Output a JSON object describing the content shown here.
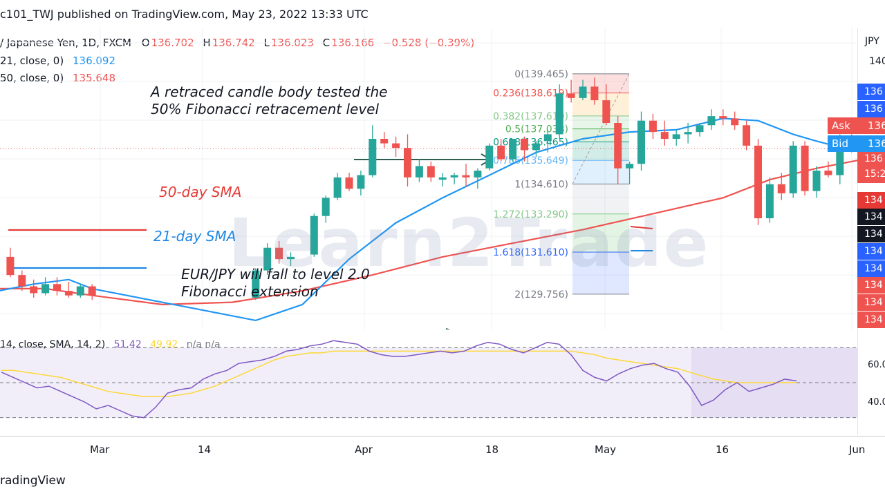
{
  "header": {
    "published": "c101_TWJ published on TradingView.com, May 23, 2022 13:33 UTC"
  },
  "legend": {
    "symbol": "/ Japanese Yen, 1D, FXCM",
    "o_label": "O",
    "o_value": "136.702",
    "h_label": "H",
    "h_value": "136.742",
    "l_label": "L",
    "l_value": "136.023",
    "c_label": "C",
    "c_value": "136.166",
    "change": "−0.528 (−0.39%)",
    "sma21_label": "21, close, 0)",
    "sma21_value": "136.092",
    "sma50_label": "50, close, 0)",
    "sma50_value": "135.648"
  },
  "annotations": {
    "retrace_line1": "A retraced candle body tested the",
    "retrace_line2": "50% Fibonacci retracement level",
    "sma50_label": "50-day SMA",
    "sma21_label": "21-day SMA",
    "forecast_line1": "EUR/JPY will fall to level 2.0",
    "forecast_line2": "Fibonacci extension",
    "watermark": "Learn2Trade"
  },
  "fibonacci": [
    {
      "level": "0",
      "price": "139.465",
      "text": "0(139.465)",
      "color": "#787b86"
    },
    {
      "level": "0.236",
      "price": "138.619",
      "text": "0.236(138.619)",
      "color": "#ef5350"
    },
    {
      "level": "0.382",
      "price": "137.610",
      "text": "0.382(137.610)",
      "color": "#81c784"
    },
    {
      "level": "0.5",
      "price": "137.038",
      "text": "0.5(137.038)",
      "color": "#4caf50"
    },
    {
      "level": "0.618",
      "price": "136.465",
      "text": "0.618(136.465)",
      "color": "#089981"
    },
    {
      "level": "0.786",
      "price": "135.649",
      "text": "0.786(135.649)",
      "color": "#64b5f6"
    },
    {
      "level": "1",
      "price": "134.610",
      "text": "1(134.610)",
      "color": "#787b86"
    },
    {
      "level": "1.272",
      "price": "133.290",
      "text": "1.272(133.290)",
      "color": "#81c784"
    },
    {
      "level": "1.618",
      "price": "131.610",
      "text": "1.618(131.610)",
      "color": "#2962ff"
    },
    {
      "level": "2",
      "price": "129.756",
      "text": "2(129.756)",
      "color": "#787b86"
    }
  ],
  "rsi": {
    "label": "14, close, SMA, 14, 2)",
    "rsi_value": "51.42",
    "ma_value": "49.92",
    "na": "n/a  n/a",
    "levels": [
      "60.0",
      "40.0"
    ]
  },
  "price_scale": {
    "currency": "JPY",
    "top_label": "140",
    "ask_label": "Ask",
    "ask_value": "136",
    "bid_label": "Bid",
    "bid_value": "136",
    "countdown_top": "136",
    "countdown_bottom": "15:2",
    "tags": [
      "136",
      "136",
      "134",
      "134",
      "134",
      "134",
      "134",
      "134",
      "134",
      "134"
    ]
  },
  "x_axis": {
    "labels": [
      "Mar",
      "14",
      "Apr",
      "18",
      "May",
      "16",
      "Jun"
    ]
  },
  "footer": {
    "brand": "radingView"
  },
  "colors": {
    "up": "#26a69a",
    "down": "#ef5350",
    "sma21": "#2196f3",
    "sma50": "#ef5350",
    "rsi": "#7e57c2",
    "rsi_ma": "#fdd835"
  },
  "chart_data": {
    "type": "candlestick",
    "title": "",
    "ylim": [
      128.2,
      141.5
    ],
    "x_ticks": [
      "Mar",
      "14",
      "Apr",
      "18",
      "May",
      "16",
      "Jun"
    ],
    "ohlc": [
      [
        1,
        131.4,
        131.8,
        130.5,
        130.6
      ],
      [
        2,
        130.6,
        130.8,
        129.9,
        130.1
      ],
      [
        3,
        130.1,
        130.4,
        129.6,
        129.8
      ],
      [
        4,
        129.8,
        130.5,
        129.7,
        130.2
      ],
      [
        5,
        130.2,
        130.5,
        129.7,
        129.9
      ],
      [
        6,
        129.9,
        130.3,
        129.6,
        129.7
      ],
      [
        7,
        129.7,
        130.2,
        129.6,
        130.1
      ],
      [
        8,
        130.1,
        130.2,
        129.5,
        129.7
      ],
      [
        22,
        129.6,
        130.9,
        129.5,
        130.8
      ],
      [
        23,
        130.8,
        132.0,
        130.6,
        131.8
      ],
      [
        24,
        131.8,
        132.1,
        131.1,
        131.3
      ],
      [
        25,
        131.3,
        131.6,
        131.0,
        131.4
      ],
      [
        27,
        131.5,
        133.3,
        131.4,
        133.2
      ],
      [
        28,
        133.2,
        134.1,
        132.9,
        134.0
      ],
      [
        29,
        134.0,
        135.1,
        133.9,
        134.9
      ],
      [
        30,
        134.9,
        135.1,
        134.3,
        134.4
      ],
      [
        31,
        134.4,
        135.2,
        134.1,
        135.0
      ],
      [
        32,
        135.0,
        137.2,
        134.9,
        136.6
      ],
      [
        33,
        136.6,
        136.9,
        136.2,
        136.4
      ],
      [
        34,
        136.4,
        136.7,
        135.8,
        136.2
      ],
      [
        35,
        136.2,
        136.8,
        134.5,
        134.9
      ],
      [
        36,
        134.9,
        135.7,
        134.7,
        135.4
      ],
      [
        37,
        135.4,
        135.6,
        134.7,
        134.9
      ],
      [
        38,
        134.8,
        135.1,
        134.5,
        134.9
      ],
      [
        39,
        134.9,
        135.1,
        134.6,
        135.0
      ],
      [
        40,
        135.0,
        135.5,
        134.5,
        134.9
      ],
      [
        41,
        134.9,
        135.3,
        134.4,
        135.2
      ],
      [
        42,
        135.3,
        136.4,
        135.2,
        136.3
      ],
      [
        43,
        136.3,
        136.6,
        135.6,
        135.7
      ],
      [
        44,
        135.7,
        136.6,
        135.6,
        136.6
      ],
      [
        45,
        136.6,
        136.7,
        135.6,
        136.1
      ],
      [
        46,
        136.1,
        136.5,
        135.8,
        136.4
      ],
      [
        47,
        136.5,
        137.0,
        136.0,
        136.8
      ],
      [
        48,
        136.8,
        139.0,
        136.6,
        138.6
      ],
      [
        49,
        138.6,
        139.2,
        138.2,
        138.4
      ],
      [
        50,
        138.4,
        139.2,
        138.3,
        138.9
      ],
      [
        51,
        138.9,
        139.3,
        138.1,
        138.3
      ],
      [
        52,
        138.3,
        139.0,
        137.2,
        137.3
      ],
      [
        53,
        137.3,
        137.6,
        134.6,
        135.3
      ],
      [
        54,
        135.3,
        135.6,
        134.6,
        135.5
      ],
      [
        55,
        135.5,
        137.8,
        135.2,
        137.4
      ],
      [
        56,
        137.4,
        137.7,
        136.6,
        136.9
      ],
      [
        57,
        136.9,
        137.4,
        136.3,
        136.6
      ],
      [
        58,
        136.6,
        137.0,
        136.3,
        136.8
      ],
      [
        59,
        136.8,
        137.3,
        136.4,
        136.9
      ],
      [
        60,
        136.9,
        137.3,
        136.7,
        137.2
      ],
      [
        61,
        137.2,
        137.9,
        137.0,
        137.6
      ],
      [
        62,
        137.6,
        137.9,
        137.2,
        137.5
      ],
      [
        63,
        137.5,
        137.8,
        137.0,
        137.2
      ],
      [
        64,
        137.2,
        137.4,
        136.1,
        136.3
      ],
      [
        65,
        136.3,
        136.6,
        132.8,
        133.1
      ],
      [
        66,
        133.1,
        134.9,
        132.9,
        134.6
      ],
      [
        67,
        134.6,
        135.1,
        133.9,
        134.2
      ],
      [
        68,
        134.2,
        136.5,
        134.0,
        136.3
      ],
      [
        69,
        136.3,
        136.5,
        134.1,
        134.3
      ],
      [
        70,
        134.3,
        135.4,
        134.0,
        135.2
      ],
      [
        71,
        135.2,
        135.6,
        134.9,
        135.0
      ],
      [
        72,
        135.0,
        136.8,
        134.6,
        136.7
      ],
      [
        73,
        136.7,
        136.8,
        136.0,
        136.2
      ]
    ],
    "series": [
      {
        "name": "21-day SMA",
        "x": [
          0,
          3,
          6,
          8,
          22,
          26,
          30,
          34,
          38,
          42,
          46,
          50,
          54,
          58,
          62,
          65,
          68,
          70,
          73
        ],
        "values": [
          129.9,
          130.2,
          130.4,
          130.0,
          128.6,
          129.3,
          131.3,
          132.9,
          134.0,
          135.0,
          136.0,
          136.6,
          136.9,
          137.0,
          137.5,
          137.4,
          136.8,
          136.5,
          136.1
        ]
      },
      {
        "name": "50-day SMA",
        "x": [
          0,
          4,
          8,
          14,
          20,
          26,
          32,
          38,
          44,
          50,
          56,
          62,
          66,
          70,
          74
        ],
        "values": [
          130.0,
          130.0,
          129.7,
          129.3,
          129.4,
          129.9,
          130.6,
          131.4,
          132.0,
          132.6,
          133.3,
          134.0,
          134.8,
          135.3,
          135.7
        ]
      }
    ],
    "rsi_series": {
      "rsi": [
        56,
        53,
        50,
        47,
        48,
        45,
        42,
        39,
        35,
        37,
        34,
        31,
        30,
        36,
        44,
        46,
        47,
        52,
        55,
        57,
        61,
        62,
        63,
        65,
        68,
        69,
        71,
        72,
        74,
        73,
        72,
        68,
        66,
        65,
        65,
        66,
        67,
        68,
        67,
        68,
        71,
        73,
        72,
        69,
        67,
        70,
        73,
        72,
        66,
        57,
        53,
        51,
        55,
        58,
        60,
        61,
        58,
        56,
        48,
        37,
        40,
        46,
        50,
        45,
        47,
        49,
        52,
        51
      ],
      "ma": [
        57,
        57,
        56,
        55,
        54,
        53,
        51,
        49,
        47,
        45,
        44,
        43,
        42,
        42,
        42,
        43,
        44,
        46,
        48,
        51,
        54,
        57,
        60,
        63,
        65,
        66,
        67,
        67,
        68,
        68,
        68,
        68,
        68,
        68,
        68,
        68,
        68,
        68,
        68,
        68,
        68,
        68,
        68,
        68,
        68,
        68,
        68,
        68,
        68,
        67,
        66,
        64,
        63,
        62,
        61,
        60,
        59,
        58,
        56,
        54,
        52,
        51,
        50,
        50,
        50,
        50,
        50,
        50
      ],
      "levels": [
        70,
        50,
        30
      ]
    }
  }
}
